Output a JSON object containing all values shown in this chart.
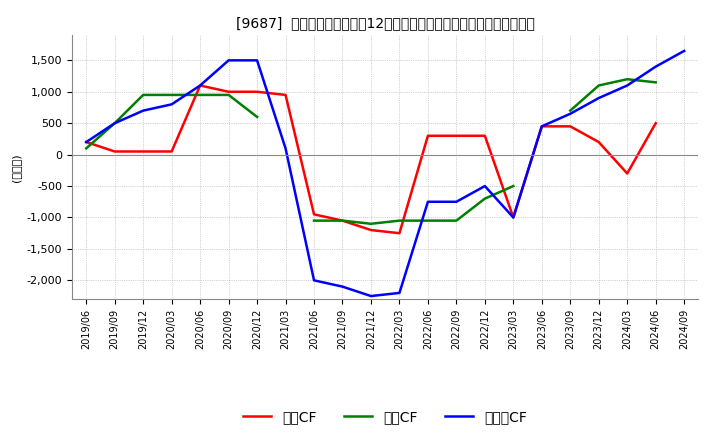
{
  "title": "[9687]  キャッシュフローの12か月移動合計の対前年同期増減額の推移",
  "ylabel": "(百万円)",
  "ylim": [
    -2300,
    1900
  ],
  "yticks": [
    -2000,
    -1500,
    -1000,
    -500,
    0,
    500,
    1000,
    1500
  ],
  "dates": [
    "2019/06",
    "2019/09",
    "2019/12",
    "2020/03",
    "2020/06",
    "2020/09",
    "2020/12",
    "2021/03",
    "2021/06",
    "2021/09",
    "2021/12",
    "2022/03",
    "2022/06",
    "2022/09",
    "2022/12",
    "2023/03",
    "2023/06",
    "2023/09",
    "2023/12",
    "2024/03",
    "2024/06",
    "2024/09"
  ],
  "eigyo_cf": [
    200,
    50,
    50,
    50,
    1100,
    1000,
    1000,
    950,
    -950,
    -1050,
    -1200,
    -1250,
    300,
    300,
    300,
    -1000,
    450,
    450,
    200,
    -300,
    500,
    null
  ],
  "toshi_cf": [
    100,
    500,
    950,
    950,
    950,
    950,
    600,
    null,
    -1050,
    -1050,
    -1100,
    -1050,
    -1050,
    -1050,
    -700,
    -500,
    null,
    700,
    1100,
    1200,
    1150,
    null
  ],
  "free_cf": [
    200,
    500,
    700,
    800,
    1100,
    1500,
    1500,
    100,
    -2000,
    -2100,
    -2250,
    -2200,
    -750,
    -750,
    -500,
    -1000,
    450,
    650,
    900,
    1100,
    1400,
    1650
  ],
  "eigyo_color": "#ff0000",
  "toshi_color": "#008000",
  "free_color": "#0000ff",
  "background_color": "#ffffff",
  "plot_bg_color": "#ffffff",
  "grid_color": "#aaaaaa",
  "legend_labels": [
    "営業CF",
    "投資CF",
    "フリーCF"
  ]
}
